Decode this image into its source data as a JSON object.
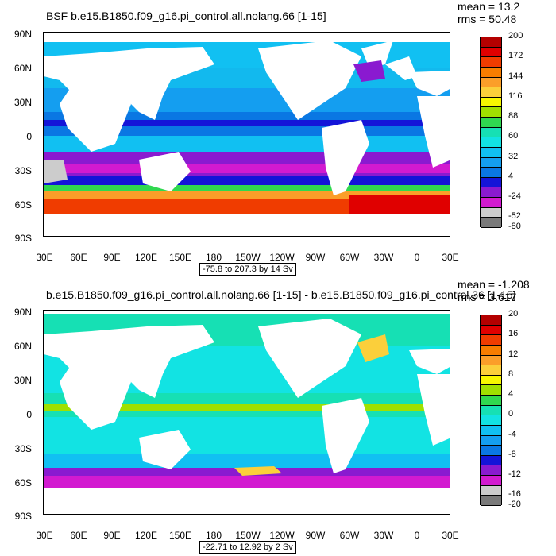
{
  "colors": {
    "palette_top": [
      "#b40000",
      "#e00000",
      "#f03c00",
      "#f77d00",
      "#fb9e29",
      "#fbcf3b",
      "#f7f700",
      "#a0e000",
      "#30d850",
      "#16e0b4",
      "#12e3e3",
      "#11c0f2",
      "#149ef0",
      "#0a77e3",
      "#1414d8",
      "#8a1ad0",
      "#d21ad0",
      "#cccccc",
      "#7a7a7a"
    ],
    "palette_bottom": [
      "#b40000",
      "#e00000",
      "#f03c00",
      "#f77d00",
      "#fb9e29",
      "#fbcf3b",
      "#f7f700",
      "#a0e000",
      "#30d850",
      "#16e0b4",
      "#12e3e3",
      "#11c0f2",
      "#149ef0",
      "#0a77e3",
      "#1414d8",
      "#8a1ad0",
      "#d21ad0",
      "#cccccc",
      "#7a7a7a"
    ],
    "land": "#ffffff"
  },
  "top": {
    "title": "BSF b.e15.B1850.f09_g16.pi_control.all.nolang.66 [1-15]",
    "mean": "mean = 13.2",
    "rms": "rms = 50.48",
    "range": "-75.8 to 207.3 by 14 Sv",
    "colorbar_labels": [
      "200",
      "172",
      "144",
      "116",
      "88",
      "60",
      "32",
      "4",
      "-24",
      "-52",
      "-80"
    ]
  },
  "bottom": {
    "title": "b.e15.B1850.f09_g16.pi_control.all.nolang.66 [1-15] - b.e15.B1850.f09_g16.pi_control.36 [1-15]",
    "mean": "mean = -1.208",
    "rms": "rms = 3.617",
    "range": "-22.71 to 12.92 by 2 Sv",
    "colorbar_labels": [
      "20",
      "16",
      "12",
      "8",
      "4",
      "0",
      "-4",
      "-8",
      "-12",
      "-16",
      "-20"
    ]
  },
  "axes": {
    "lat_labels": [
      "90N",
      "60N",
      "30N",
      "0",
      "30S",
      "60S",
      "90S"
    ],
    "lon_labels": [
      "30E",
      "60E",
      "90E",
      "120E",
      "150E",
      "180",
      "150W",
      "120W",
      "90W",
      "60W",
      "30W",
      "0",
      "30E"
    ]
  }
}
